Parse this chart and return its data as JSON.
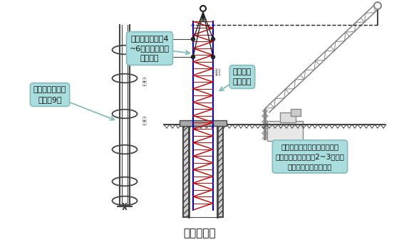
{
  "title": "吊点示意图",
  "title_fontsize": 11,
  "bg_color": "#ffffff",
  "annotation_bg": "#aadddd",
  "annotation_edge": "#88bbbb",
  "annotation_text_color": "#111111",
  "label1": "分段制作成型，\n每段长9米",
  "label2": "每个钢筋笼设置4\n~6个起吊点（对\n称布置）",
  "label3": "焊接中用\n钢管支撑",
  "label4": "第一节钢筋笼放入桩孔，采用\n钢管支撑固定且留有2~3米高长\n度与下段钢筋笼焊接。",
  "cage_red": "#cc0000",
  "cage_blue": "#0000cc",
  "steel_color": "#444444",
  "crane_color": "#888888",
  "rope_color": "#222222",
  "ground_fill": "#cccccc",
  "hatch_fill": "#d0d0d0"
}
